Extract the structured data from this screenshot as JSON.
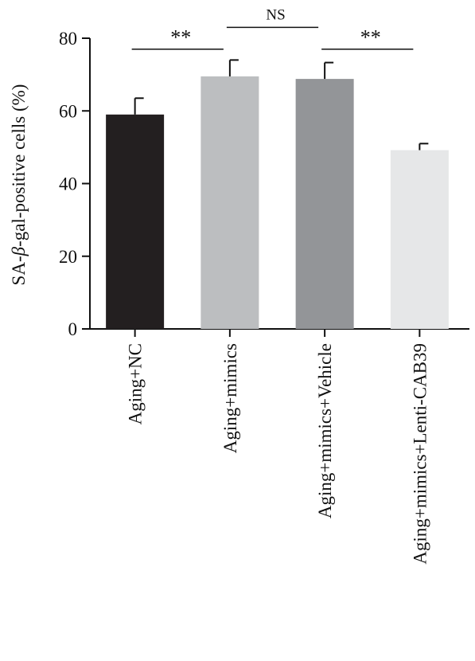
{
  "chart_data": {
    "type": "bar",
    "ylabel": {
      "prefix": "SA-",
      "symbol": "β",
      "suffix": "-gal-positive cells (%)"
    },
    "xlabel": "",
    "ylim": [
      0,
      80
    ],
    "yticks": [
      0,
      20,
      40,
      60,
      80
    ],
    "categories": [
      "Aging+NC",
      "Aging+mimics",
      "Aging+mimics+Vehicle",
      "Aging+mimics+Lenti-CAB39"
    ],
    "values": [
      59,
      69.5,
      68.8,
      49.2
    ],
    "errors": [
      4.5,
      4.5,
      4.5,
      1.8
    ],
    "colors": [
      "#231f20",
      "#bcbec0",
      "#939598",
      "#e6e7e8"
    ],
    "grid": false,
    "legend": "none",
    "annotations": [
      {
        "from": 0,
        "to": 1,
        "label": "**",
        "y": 77
      },
      {
        "from": 1,
        "to": 2,
        "label": "NS",
        "y": 83
      },
      {
        "from": 2,
        "to": 3,
        "label": "**",
        "y": 77
      }
    ]
  }
}
